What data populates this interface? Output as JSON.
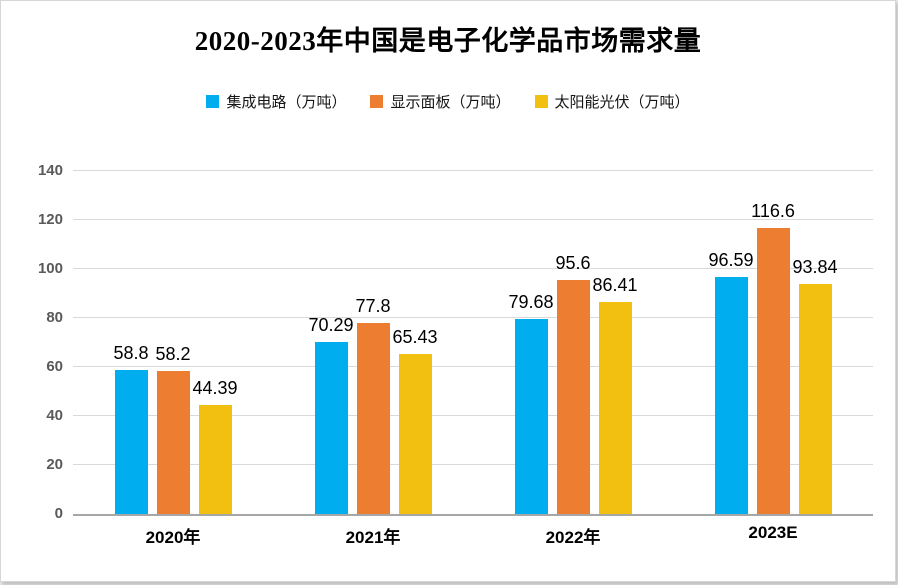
{
  "chart_data": {
    "type": "bar",
    "title": "2020-2023年中国是电子化学品市场需求量",
    "categories": [
      "2020年",
      "2021年",
      "2022年",
      "2023E"
    ],
    "series": [
      {
        "name": "集成电路（万吨）",
        "color": "#00AEEF",
        "values": [
          58.8,
          70.29,
          79.68,
          96.59
        ]
      },
      {
        "name": "显示面板（万吨）",
        "color": "#ED7D31",
        "values": [
          58.2,
          77.8,
          95.6,
          116.6
        ]
      },
      {
        "name": "太阳能光伏（万吨）",
        "color": "#F2C011",
        "values": [
          44.39,
          65.43,
          86.41,
          93.84
        ]
      }
    ],
    "xlabel": "",
    "ylabel": "",
    "ylim": [
      0,
      140
    ],
    "ytick_step": 20,
    "grid": "on",
    "legend_position": "top",
    "grid_color": "#D9D9D9",
    "baseline_color": "#A6A6A6",
    "axis_label_color": "#595959"
  }
}
